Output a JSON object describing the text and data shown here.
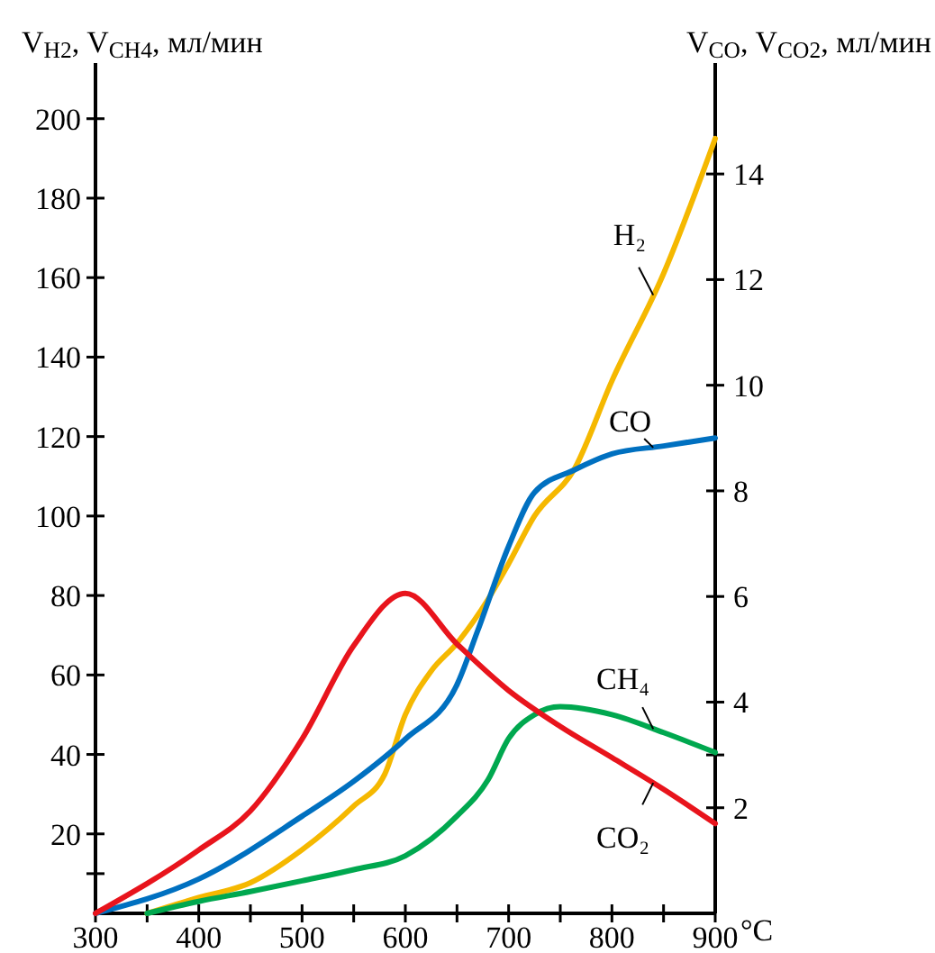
{
  "chart_data": {
    "type": "line",
    "xlabel": "°C",
    "ylabel": "V$_{H2}$, V$_{CH4}$, мл/мин",
    "y2label": "V$_{CO}$, V$_{CO2}$, мл/мин",
    "xlim": [
      300,
      900
    ],
    "xticks": [
      300,
      {
        "value": 350,
        "label": null
      },
      400,
      {
        "value": 450,
        "label": null
      },
      500,
      {
        "value": 550,
        "label": null
      },
      600,
      {
        "value": 650,
        "label": null
      },
      700,
      {
        "value": 750,
        "label": null
      },
      800,
      {
        "value": 850,
        "label": null
      },
      900
    ],
    "ylim": [
      0,
      214
    ],
    "yticks": [
      {
        "value": 10,
        "label": null
      },
      20,
      40,
      60,
      80,
      100,
      120,
      140,
      160,
      180,
      200
    ],
    "y2lim": [
      0,
      16.1
    ],
    "y2ticks": [
      2,
      {
        "value": 3,
        "label": null
      },
      4,
      6,
      8,
      10,
      12,
      14
    ],
    "grid": false,
    "marker": "none",
    "line_style": "solid",
    "series": [
      {
        "name": "H₂",
        "color": "#f5b800",
        "x": [
          350,
          400,
          450,
          500,
          550,
          580,
          600,
          625,
          650,
          680,
          700,
          725,
          764,
          800,
          850,
          900
        ],
        "values": [
          0,
          4,
          7.7,
          16,
          27,
          35,
          50,
          61,
          68,
          79,
          88,
          100,
          112,
          134,
          161,
          195
        ]
      },
      {
        "name": "CO",
        "color": "#0070c0",
        "axis": "y2",
        "x": [
          300,
          400,
          500,
          550,
          600,
          650,
          670,
          700,
          725,
          764,
          800,
          850,
          900
        ],
        "values": [
          0,
          0.65,
          1.84,
          2.5,
          3.3,
          4.33,
          5.35,
          6.95,
          7.97,
          8.4,
          8.7,
          8.85,
          9.0
        ]
      },
      {
        "name": "CH₄",
        "color": "#00a84f",
        "x": [
          350,
          400,
          450,
          500,
          550,
          600,
          650,
          680,
          700,
          725,
          750,
          800,
          850,
          900
        ],
        "values": [
          0,
          3,
          5.5,
          8.2,
          11,
          14.5,
          24.5,
          33.6,
          44,
          50,
          52,
          50,
          45.5,
          40.5
        ]
      },
      {
        "name": "CO₂",
        "color": "#e8141c",
        "axis": "y2",
        "x": [
          300,
          400,
          450,
          500,
          550,
          600,
          650,
          700,
          750,
          800,
          850,
          900
        ],
        "values": [
          0,
          1.2,
          1.94,
          3.3,
          5.07,
          6.06,
          5.1,
          4.22,
          3.54,
          2.95,
          2.35,
          1.7
        ]
      }
    ]
  }
}
